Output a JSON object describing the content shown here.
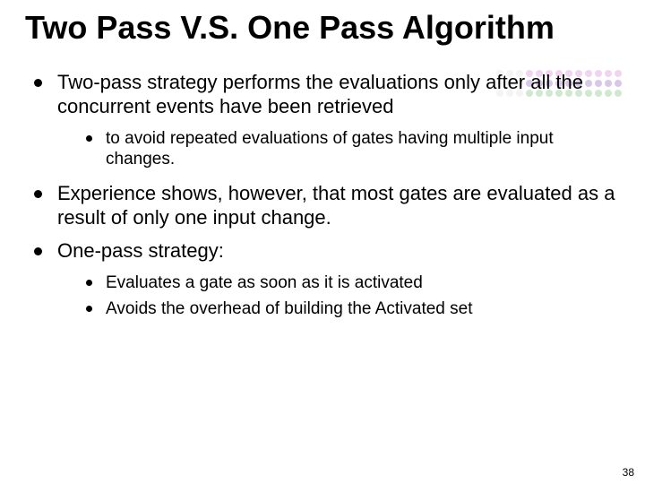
{
  "title": "Two Pass V.S. One Pass Algorithm",
  "bullets": [
    {
      "text": "Two-pass strategy performs the evaluations only after all the concurrent events have been retrieved",
      "sub": [
        "to avoid repeated evaluations of gates having multiple input changes."
      ]
    },
    {
      "text": "Experience shows, however, that most gates are evaluated as a result of only one input change.",
      "sub": []
    },
    {
      "text": "One-pass strategy:",
      "sub": [
        "Evaluates a gate as soon as it is activated",
        "Avoids the overhead of building the Activated set"
      ]
    }
  ],
  "page_number": "38",
  "decoration": {
    "rows": 3,
    "cols": 13,
    "dot_size": 8,
    "colors": {
      "row1": "#f0d4f0",
      "row2": "#d8c8e8",
      "row3": "#d0e8d0",
      "faded": "#f4f4f4"
    }
  }
}
